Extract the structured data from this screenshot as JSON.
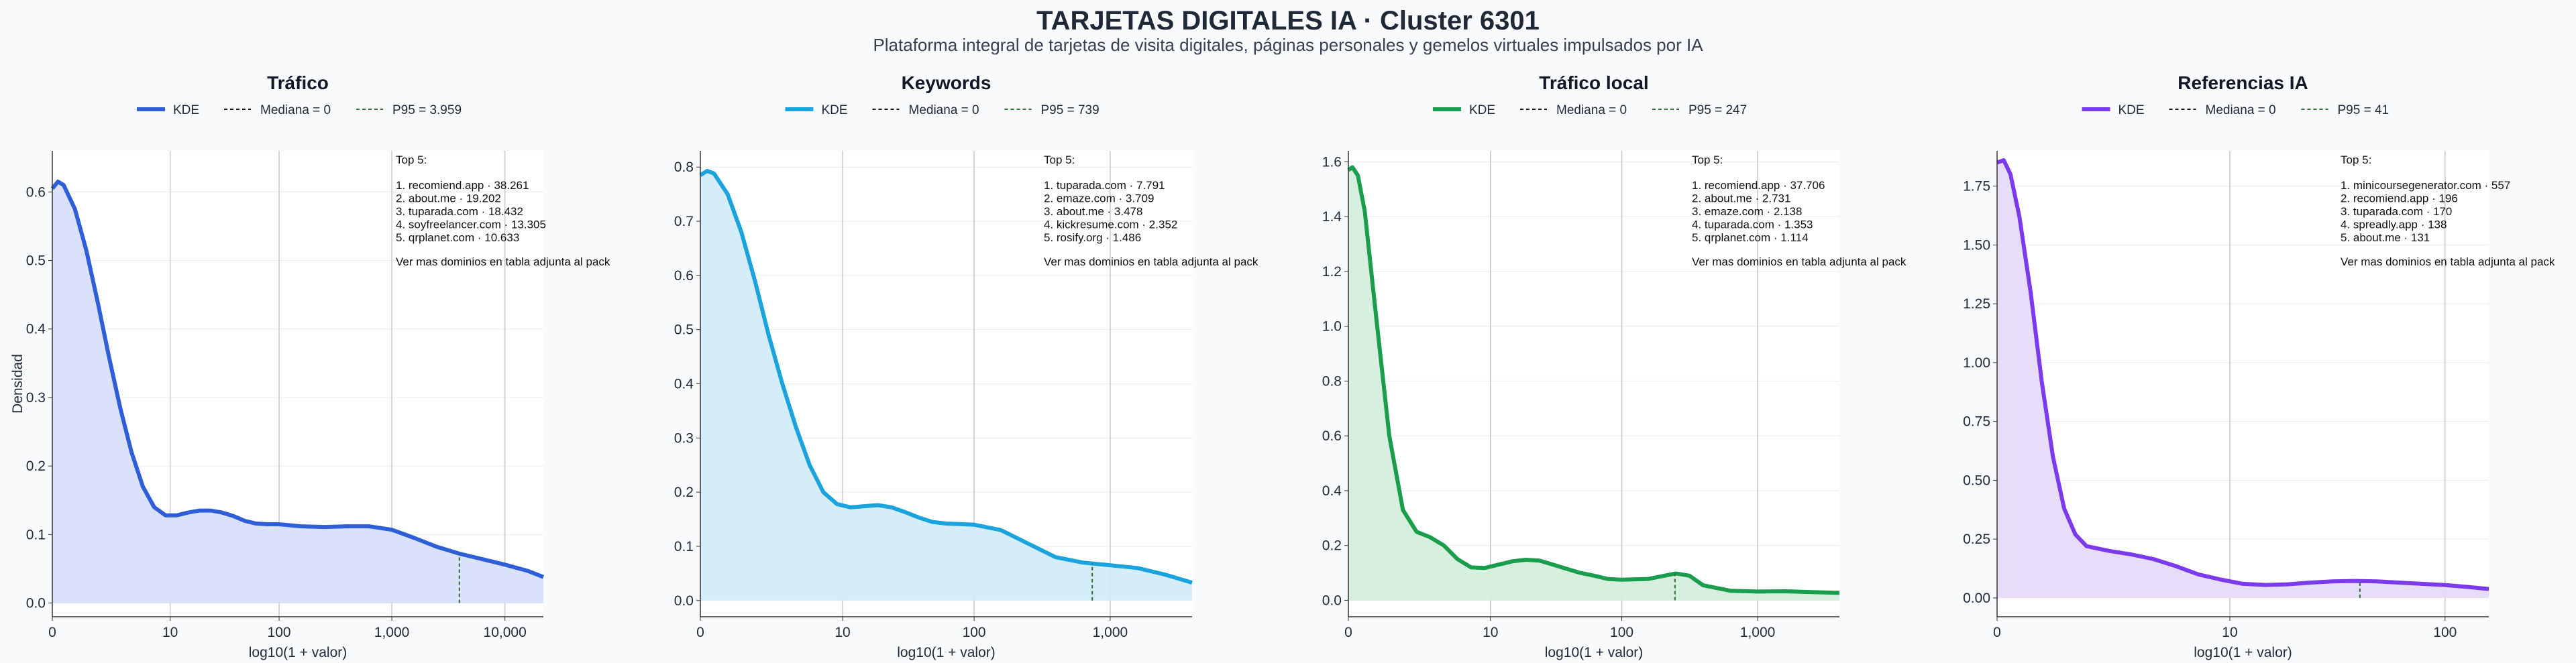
{
  "title": "TARJETAS DIGITALES IA · Cluster 6301",
  "subtitle": "Plataforma integral de tarjetas de visita digitales, páginas personales y gemelos virtuales impulsados por IA",
  "chart_data": [
    {
      "type": "area",
      "title": "Tráfico",
      "xlabel": "log10(1 + valor)",
      "ylabel": "Densidad",
      "x_scale": "log10(1+x)",
      "xlim": [
        0,
        4.34
      ],
      "ylim": [
        -0.02,
        0.66
      ],
      "xticks": [
        "0",
        "10",
        "100",
        "1,000",
        "10,000"
      ],
      "yticks": [
        "0.0",
        "0.1",
        "0.2",
        "0.3",
        "0.4",
        "0.5",
        "0.6"
      ],
      "color": "#2f5fd8",
      "fill": "#d7e0fa",
      "legend": {
        "kde": "KDE",
        "median": "Mediana = 0",
        "p95": "P95 = 3.959"
      },
      "median": 0,
      "p95": 3959,
      "series": [
        {
          "name": "KDE",
          "x": [
            0,
            0.05,
            0.1,
            0.2,
            0.3,
            0.4,
            0.5,
            0.6,
            0.7,
            0.8,
            0.9,
            1.0,
            1.1,
            1.2,
            1.3,
            1.4,
            1.5,
            1.6,
            1.7,
            1.8,
            1.9,
            2.0,
            2.2,
            2.4,
            2.6,
            2.8,
            3.0,
            3.2,
            3.4,
            3.6,
            3.8,
            4.0,
            4.2,
            4.34
          ],
          "y": [
            0.605,
            0.615,
            0.61,
            0.575,
            0.515,
            0.44,
            0.36,
            0.285,
            0.22,
            0.17,
            0.14,
            0.128,
            0.128,
            0.132,
            0.135,
            0.135,
            0.132,
            0.127,
            0.12,
            0.116,
            0.115,
            0.115,
            0.112,
            0.111,
            0.112,
            0.112,
            0.107,
            0.095,
            0.082,
            0.072,
            0.064,
            0.056,
            0.047,
            0.038
          ]
        }
      ],
      "top5": {
        "heading": "Top 5:",
        "items": [
          "1. recomiend.app · 38.261",
          "2. about.me · 19.202",
          "3. tuparada.com · 18.432",
          "4. soyfreelancer.com · 13.305",
          "5. qrplanet.com · 10.633"
        ],
        "note": "Ver mas dominios en tabla adjunta al pack"
      }
    },
    {
      "type": "area",
      "title": "Keywords",
      "xlabel": "log10(1 + valor)",
      "ylabel": "",
      "x_scale": "log10(1+x)",
      "xlim": [
        0,
        3.6
      ],
      "ylim": [
        -0.03,
        0.83
      ],
      "xticks": [
        "0",
        "10",
        "100",
        "1,000"
      ],
      "yticks": [
        "0.0",
        "0.1",
        "0.2",
        "0.3",
        "0.4",
        "0.5",
        "0.6",
        "0.7",
        "0.8"
      ],
      "color": "#1aa3dc",
      "fill": "#d2ecf9",
      "legend": {
        "kde": "KDE",
        "median": "Mediana = 0",
        "p95": "P95 = 739"
      },
      "median": 0,
      "p95": 739,
      "series": [
        {
          "name": "KDE",
          "x": [
            0,
            0.05,
            0.1,
            0.2,
            0.3,
            0.4,
            0.5,
            0.6,
            0.7,
            0.8,
            0.9,
            1.0,
            1.1,
            1.2,
            1.3,
            1.4,
            1.5,
            1.6,
            1.7,
            1.8,
            1.9,
            2.0,
            2.2,
            2.4,
            2.6,
            2.8,
            3.0,
            3.2,
            3.4,
            3.6
          ],
          "y": [
            0.785,
            0.793,
            0.788,
            0.75,
            0.68,
            0.59,
            0.49,
            0.4,
            0.32,
            0.25,
            0.2,
            0.178,
            0.172,
            0.174,
            0.176,
            0.172,
            0.163,
            0.153,
            0.145,
            0.142,
            0.141,
            0.14,
            0.13,
            0.105,
            0.08,
            0.07,
            0.065,
            0.06,
            0.048,
            0.033
          ]
        }
      ],
      "top5": {
        "heading": "Top 5:",
        "items": [
          "1. tuparada.com · 7.791",
          "2. emaze.com · 3.709",
          "3. about.me · 3.478",
          "4. kickresume.com · 2.352",
          "5. rosify.org · 1.486"
        ],
        "note": "Ver mas dominios en tabla adjunta al pack"
      }
    },
    {
      "type": "area",
      "title": "Tráfico local",
      "xlabel": "log10(1 + valor)",
      "ylabel": "",
      "x_scale": "log10(1+x)",
      "xlim": [
        0,
        3.6
      ],
      "ylim": [
        -0.06,
        1.64
      ],
      "xticks": [
        "0",
        "10",
        "100",
        "1,000"
      ],
      "yticks": [
        "0.0",
        "0.2",
        "0.4",
        "0.6",
        "0.8",
        "1.0",
        "1.2",
        "1.4",
        "1.6"
      ],
      "color": "#1a9e4e",
      "fill": "#d5eedc",
      "legend": {
        "kde": "KDE",
        "median": "Mediana = 0",
        "p95": "P95 = 247"
      },
      "median": 0,
      "p95": 247,
      "series": [
        {
          "name": "KDE",
          "x": [
            0,
            0.03,
            0.07,
            0.12,
            0.2,
            0.3,
            0.4,
            0.5,
            0.6,
            0.7,
            0.8,
            0.9,
            1.0,
            1.1,
            1.2,
            1.3,
            1.4,
            1.5,
            1.6,
            1.7,
            1.8,
            1.9,
            2.0,
            2.2,
            2.4,
            2.5,
            2.6,
            2.8,
            3.0,
            3.2,
            3.4,
            3.6
          ],
          "y": [
            1.57,
            1.58,
            1.55,
            1.42,
            1.05,
            0.6,
            0.33,
            0.25,
            0.23,
            0.2,
            0.15,
            0.12,
            0.118,
            0.13,
            0.142,
            0.148,
            0.145,
            0.13,
            0.115,
            0.1,
            0.09,
            0.078,
            0.075,
            0.078,
            0.098,
            0.09,
            0.055,
            0.035,
            0.032,
            0.033,
            0.03,
            0.027
          ]
        }
      ],
      "top5": {
        "heading": "Top 5:",
        "items": [
          "1. recomiend.app · 37.706",
          "2. about.me · 2.731",
          "3. emaze.com · 2.138",
          "4. tuparada.com · 1.353",
          "5. qrplanet.com · 1.114"
        ],
        "note": "Ver mas dominios en tabla adjunta al pack"
      }
    },
    {
      "type": "area",
      "title": "Referencias IA",
      "xlabel": "log10(1 + valor)",
      "ylabel": "",
      "x_scale": "log10(1+x)",
      "xlim": [
        0,
        2.2
      ],
      "ylim": [
        -0.08,
        1.9
      ],
      "xticks": [
        "0",
        "10",
        "100"
      ],
      "yticks": [
        "0.00",
        "0.25",
        "0.50",
        "0.75",
        "1.00",
        "1.25",
        "1.50",
        "1.75"
      ],
      "color": "#7c3aed",
      "fill": "#e6dbf8",
      "legend": {
        "kde": "KDE",
        "median": "Mediana = 0",
        "p95": "P95 = 41"
      },
      "median": 0,
      "p95": 41,
      "series": [
        {
          "name": "KDE",
          "x": [
            0,
            0.03,
            0.06,
            0.1,
            0.15,
            0.2,
            0.25,
            0.3,
            0.35,
            0.4,
            0.5,
            0.6,
            0.7,
            0.8,
            0.9,
            1.0,
            1.1,
            1.2,
            1.3,
            1.4,
            1.5,
            1.6,
            1.7,
            1.8,
            1.9,
            2.0,
            2.1,
            2.2
          ],
          "y": [
            1.85,
            1.86,
            1.8,
            1.62,
            1.3,
            0.92,
            0.6,
            0.38,
            0.27,
            0.22,
            0.2,
            0.185,
            0.165,
            0.135,
            0.1,
            0.078,
            0.06,
            0.055,
            0.058,
            0.065,
            0.07,
            0.072,
            0.07,
            0.065,
            0.06,
            0.055,
            0.047,
            0.038
          ]
        }
      ],
      "top5": {
        "heading": "Top 5:",
        "items": [
          "1. minicoursegenerator.com · 557",
          "2. recomiend.app · 196",
          "3. tuparada.com · 170",
          "4. spreadly.app · 138",
          "5. about.me · 131"
        ],
        "note": "Ver mas dominios en tabla adjunta al pack"
      }
    }
  ]
}
